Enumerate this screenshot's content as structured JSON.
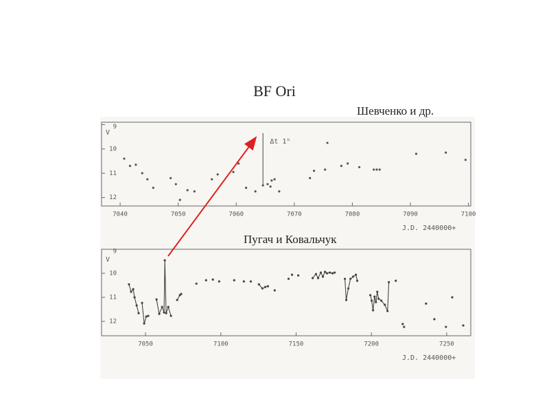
{
  "title": "BF Ori",
  "captions": [
    "Шевченко и др.",
    "Пугач и Ковальчук"
  ],
  "chart_data": [
    {
      "type": "scatter",
      "ylabel": "V",
      "xlabel": "J.D. 2440000+",
      "annotation": "Δt   1ʰ",
      "xlim": [
        7036.8,
        7100.4
      ],
      "ylim": [
        8.9,
        12.35
      ],
      "inverted_y": true,
      "xticks": [
        7040,
        7050,
        7060,
        7070,
        7080,
        7090,
        7100
      ],
      "yticks": [
        9,
        10,
        11,
        12
      ],
      "series": [
        {
          "color": "#555555",
          "x": [
            7040.7,
            7041.7,
            7042.7,
            7043.8,
            7044.7,
            7045.7,
            7048.7,
            7049.6,
            7050.3,
            7051.6,
            7052.8,
            7055.8,
            7056.8,
            7059.5,
            7060.4,
            7061.7,
            7063.3,
            7064.6,
            7065.4,
            7065.9,
            7066.1,
            7066.6,
            7067.4,
            7072.7,
            7073.4,
            7075.3,
            7075.7,
            7078.1,
            7079.2,
            7081.2,
            7083.7,
            7084.2,
            7084.7,
            7091,
            7096.1,
            7099.5
          ],
          "values": [
            10.4,
            10.7,
            10.65,
            11.0,
            11.25,
            11.6,
            11.2,
            11.45,
            12.1,
            11.7,
            11.75,
            11.25,
            11.05,
            10.95,
            10.6,
            11.6,
            11.75,
            11.5,
            11.45,
            11.55,
            11.3,
            11.25,
            11.75,
            11.2,
            10.9,
            10.85,
            9.75,
            10.7,
            10.6,
            10.75,
            10.85,
            10.85,
            10.85,
            10.2,
            10.15,
            10.45
          ]
        },
        {
          "type": "line",
          "color": "#555555",
          "x": [
            7064.6,
            7064.6
          ],
          "values": [
            9.35,
            11.5
          ]
        }
      ]
    },
    {
      "type": "line",
      "ylabel": "V",
      "xlabel": "J.D. 2440000+",
      "xlim": [
        7020.8,
        7266
      ],
      "ylim": [
        9,
        12.6
      ],
      "inverted_y": true,
      "xticks": [
        7050,
        7100,
        7150,
        7200,
        7250
      ],
      "yticks": [
        9,
        10,
        11,
        12
      ],
      "series": [
        {
          "color": "#444444",
          "x": [
            7039.0,
            7040.4,
            7041.8,
            7042.7,
            7044.1,
            7045.4,
            null,
            7047.7,
            7049.1,
            7050.5,
            7051.8,
            null,
            7057.3,
            7059.1,
            7061.0,
            7062.3,
            7062.8,
            7063.7,
            7065.1,
            7066.9,
            null,
            7071.0,
            7072.8,
            7073.7,
            null,
            7083.8,
            null,
            7090.2,
            null,
            7094.7,
            null,
            7098.9,
            null,
            7108.9,
            null,
            7115.3,
            null,
            7119.9,
            null,
            7125.3,
            7127.6,
            7129.5,
            7131.3,
            null,
            7135.8,
            null,
            7145.0,
            null,
            7147.3,
            null,
            7151.4,
            null,
            7161.0,
            7163.2,
            7164.6,
            7166.4,
            7167.8,
            7169.2,
            7170.5,
            7172.4,
            7174.2,
            7175.6,
            null,
            7182.4,
            7183.3,
            7184.7,
            7186.1,
            7187.9,
            7189.7,
            7190.6,
            null,
            7199.3,
            7200.2,
            7201.1,
            7202.1,
            7203.0,
            7203.9,
            7204.8,
            7206.6,
            7208.9,
            7210.7,
            7211.6,
            null,
            7216.2,
            null,
            7220.8,
            null,
            7221.7,
            null,
            7236.3,
            null,
            7241.8,
            null,
            7249.5,
            null,
            7253.7,
            null,
            7261.0
          ],
          "values": [
            10.46,
            10.77,
            10.66,
            11.0,
            11.34,
            11.66,
            null,
            11.23,
            12.09,
            11.8,
            11.77,
            null,
            11.09,
            11.69,
            11.4,
            11.63,
            9.46,
            11.66,
            11.4,
            11.77,
            null,
            11.11,
            10.91,
            10.86,
            null,
            10.43,
            null,
            10.29,
            null,
            10.26,
            null,
            10.34,
            null,
            10.29,
            null,
            10.34,
            null,
            10.34,
            null,
            10.46,
            10.63,
            10.57,
            10.54,
            null,
            10.71,
            null,
            10.23,
            null,
            10.06,
            null,
            10.09,
            null,
            10.2,
            10.03,
            10.2,
            9.97,
            10.14,
            9.94,
            10.0,
            9.97,
            10.0,
            9.97,
            null,
            10.23,
            11.11,
            10.63,
            10.23,
            10.14,
            10.06,
            10.31,
            null,
            10.91,
            11.14,
            11.54,
            10.97,
            11.2,
            10.77,
            11.06,
            11.14,
            11.31,
            11.57,
            10.37,
            null,
            10.31,
            null,
            12.11,
            null,
            12.23,
            null,
            11.26,
            null,
            11.91,
            null,
            12.23,
            null,
            11.0,
            null,
            12.17
          ]
        }
      ]
    }
  ]
}
